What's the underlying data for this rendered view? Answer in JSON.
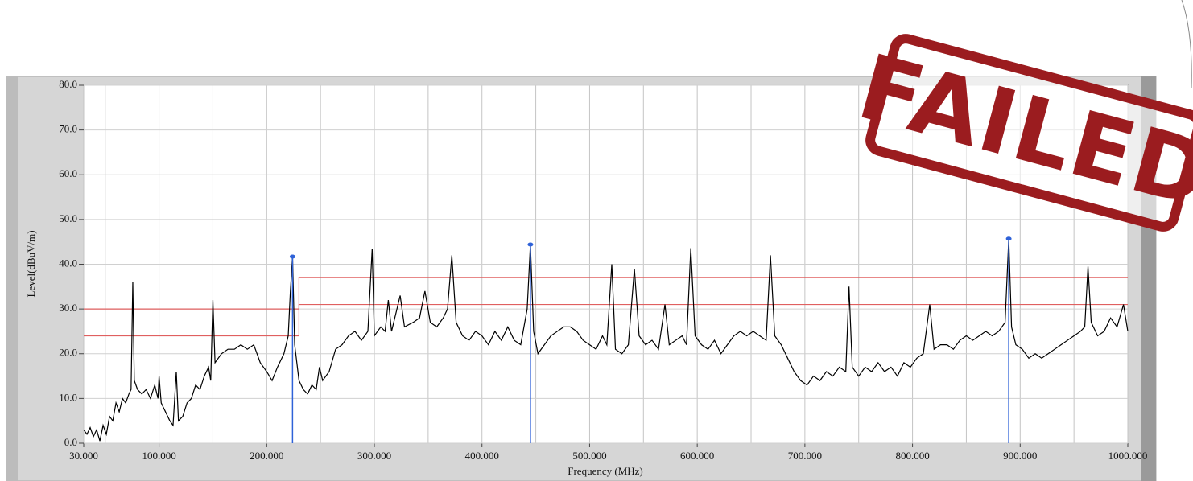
{
  "chart_data": {
    "type": "line",
    "stamp": "FAILED",
    "ylabel": "Level(dBuV/m)",
    "xlabel": "Frequency (MHz)",
    "xlim": [
      30,
      1000
    ],
    "ylim": [
      0,
      80
    ],
    "xticks": [
      {
        "value": 30,
        "label": "30.000"
      },
      {
        "value": 100,
        "label": "100.000"
      },
      {
        "value": 200,
        "label": "200.000"
      },
      {
        "value": 300,
        "label": "300.000"
      },
      {
        "value": 400,
        "label": "400.000"
      },
      {
        "value": 500,
        "label": "500.000"
      },
      {
        "value": 600,
        "label": "600.000"
      },
      {
        "value": 700,
        "label": "700.000"
      },
      {
        "value": 800,
        "label": "800.000"
      },
      {
        "value": 900,
        "label": "900.000"
      },
      {
        "value": 1000,
        "label": "1000.000"
      }
    ],
    "x_minor_grid": [
      50,
      150,
      250,
      350,
      450,
      550,
      650,
      750,
      850,
      950
    ],
    "yticks": [
      {
        "value": 0,
        "label": "0.0"
      },
      {
        "value": 10,
        "label": "10.0"
      },
      {
        "value": 20,
        "label": "20.0"
      },
      {
        "value": 30,
        "label": "30.0"
      },
      {
        "value": 40,
        "label": "40.0"
      },
      {
        "value": 50,
        "label": "50.0"
      },
      {
        "value": 60,
        "label": "60.0"
      },
      {
        "value": 70,
        "label": "70.0"
      },
      {
        "value": 80,
        "label": "80.0"
      }
    ],
    "grid": true,
    "series": [
      {
        "color": "#e06060",
        "x": [
          30,
          230,
          230,
          1000
        ],
        "values": [
          24,
          24,
          37,
          37
        ]
      },
      {
        "color": "#e06060",
        "x": [
          30,
          230,
          230,
          1000
        ],
        "values": [
          30,
          30,
          31,
          31
        ]
      },
      {
        "color": "#000000",
        "x": [
          30,
          33,
          36,
          39,
          42,
          45,
          48,
          51,
          54,
          57,
          60,
          63,
          66,
          69,
          72,
          74,
          75.6,
          77,
          80,
          84,
          88,
          92,
          96,
          99,
          100,
          102,
          106,
          110,
          113,
          116,
          118,
          122,
          126,
          130,
          134,
          138,
          142,
          146,
          148,
          150,
          152,
          158,
          164,
          170,
          176,
          182,
          188,
          194,
          200,
          205,
          210,
          216,
          220,
          222,
          224,
          226,
          230,
          234,
          238,
          242,
          246,
          249,
          252,
          258,
          264,
          270,
          276,
          282,
          288,
          294,
          298,
          300,
          306,
          310,
          313,
          316,
          324,
          328,
          336,
          342,
          347,
          352,
          358,
          364,
          368,
          372,
          376,
          382,
          388,
          394,
          400,
          406,
          412,
          418,
          424,
          430,
          436,
          442,
          445,
          448,
          452,
          458,
          464,
          470,
          476,
          482,
          488,
          494,
          500,
          506,
          512,
          516,
          520.6,
          524,
          530,
          536,
          541.6,
          546,
          552,
          558,
          564,
          570,
          574,
          580,
          586,
          590,
          594,
          598,
          604,
          610,
          616,
          622,
          628,
          634,
          640,
          646,
          652,
          658,
          664,
          668,
          672,
          678,
          684,
          690,
          696,
          702,
          708,
          714,
          720,
          726,
          732,
          738,
          741,
          744,
          750,
          756,
          762,
          768,
          774,
          780,
          786,
          792,
          798,
          804,
          810,
          816,
          820,
          826,
          832,
          838,
          844,
          850,
          856,
          862,
          868,
          874,
          880,
          886,
          889.4,
          892,
          896,
          902,
          908,
          914,
          920,
          926,
          932,
          938,
          944,
          950,
          956,
          960,
          963,
          966,
          972,
          978,
          984,
          990,
          996,
          1000
        ],
        "values": [
          3,
          2,
          3.5,
          1.5,
          3,
          0.5,
          4,
          2,
          6,
          5,
          9,
          7,
          10,
          9,
          11,
          12,
          36,
          14,
          12,
          11,
          12,
          10,
          13,
          10,
          15,
          9,
          7,
          5,
          4,
          16,
          5,
          6,
          9,
          10,
          13,
          12,
          15,
          17,
          14,
          32,
          18,
          20,
          21,
          21,
          22,
          21,
          22,
          18,
          16,
          14,
          17,
          20,
          24,
          34,
          41.7,
          22,
          14,
          12,
          11,
          13,
          12,
          17,
          14,
          16,
          21,
          22,
          24,
          25,
          23,
          25,
          43.5,
          24,
          26,
          25,
          32,
          25,
          33,
          26,
          27,
          28,
          34,
          27,
          26,
          28,
          30,
          42,
          27,
          24,
          23,
          25,
          24,
          22,
          25,
          23,
          26,
          23,
          22,
          30,
          44.4,
          25,
          20,
          22,
          24,
          25,
          26,
          26,
          25,
          23,
          22,
          21,
          24,
          22,
          40,
          21,
          20,
          22,
          39,
          24,
          22,
          23,
          21,
          31,
          22,
          23,
          24,
          22,
          43.6,
          24,
          22,
          21,
          23,
          20,
          22,
          24,
          25,
          24,
          25,
          24,
          23,
          42,
          24,
          22,
          19,
          16,
          14,
          13,
          15,
          14,
          16,
          15,
          17,
          16,
          35,
          17,
          15,
          17,
          16,
          18,
          16,
          17,
          15,
          18,
          17,
          19,
          20,
          31,
          21,
          22,
          22,
          21,
          23,
          24,
          23,
          24,
          25,
          24,
          25,
          27,
          45.7,
          26,
          22,
          21,
          19,
          20,
          19,
          20,
          21,
          22,
          23,
          24,
          25,
          26,
          39.5,
          27,
          24,
          25,
          28,
          26,
          31,
          25
        ]
      }
    ],
    "markers": {
      "color": "#2f62d8",
      "x": [
        224,
        445,
        889.4
      ],
      "values": [
        41.7,
        44.4,
        45.7
      ]
    }
  }
}
